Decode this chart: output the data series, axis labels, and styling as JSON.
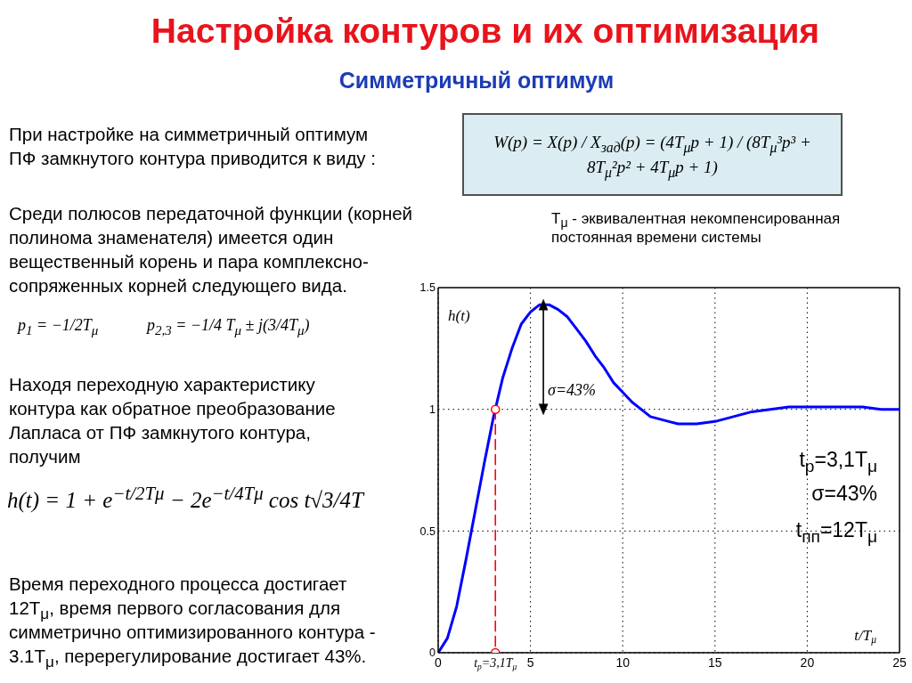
{
  "chart_data": {
    "type": "line",
    "title": "Настройка контуров и их оптимизация",
    "subtitle": "Симметричный оптимум",
    "xlabel": "t/T$_{μ}$",
    "ylabel": "h(t)",
    "xlim": [
      0,
      25
    ],
    "xticks": [
      0,
      {
        "value": 3.1,
        "label": "t$_{p}$=3,1T$_{μ}$"
      },
      5,
      10,
      15,
      20,
      25
    ],
    "ylim": [
      0,
      1.5
    ],
    "yticks": [
      0,
      0.5,
      1,
      1.5
    ],
    "grid": true,
    "series": [
      {
        "color": "#0000ff",
        "x": [
          0,
          0.5,
          1,
          1.5,
          2,
          2.5,
          3,
          3.5,
          4,
          4.5,
          5,
          5.5,
          6,
          6.5,
          7,
          7.5,
          8,
          8.5,
          9,
          9.5,
          10,
          10.5,
          11,
          11.5,
          12,
          12.5,
          13,
          13.5,
          14,
          15,
          16,
          17,
          18,
          19,
          20,
          21,
          22,
          23,
          24,
          25
        ],
        "values": [
          0,
          0.06,
          0.19,
          0.38,
          0.58,
          0.78,
          0.97,
          1.13,
          1.25,
          1.35,
          1.4,
          1.43,
          1.43,
          1.41,
          1.38,
          1.33,
          1.28,
          1.22,
          1.17,
          1.11,
          1.07,
          1.03,
          1.0,
          0.97,
          0.96,
          0.95,
          0.94,
          0.94,
          0.94,
          0.95,
          0.97,
          0.99,
          1.0,
          1.01,
          1.01,
          1.01,
          1.01,
          1.01,
          1.0,
          1.0
        ]
      },
      {
        "color": "#ff0000",
        "x": [
          3.1,
          3.1
        ],
        "values": [
          1,
          0
        ],
        "line_style": "dashed",
        "marker": "circle"
      },
      {
        "color": "#000000",
        "x": [
          5.7,
          5.7
        ],
        "values": [
          1,
          1.43
        ],
        "marker": "triangle"
      }
    ],
    "annotations": [
      "При настройке на симметричный оптимум ПФ замкнутого контура приводится к виду :",
      "W(p) = X(p) / X$_{зад}$(p) = (4T$_{μ}$p + 1) / (8T$_{μ}$³p³ + 8T$_{μ}$²p² + 4T$_{μ}$p + 1)",
      "T$_{μ}$ - эквивалентная некомпенсированная постоянная времени системы",
      "Среди полюсов передаточной функции (корней полинома знаменателя) имеется один вещественный корень и пара комплексно-сопряженных корней следующего вида.",
      "p$_{1}$ = −1/2T$_{μ}$",
      "p$_{2,3}$ = −1/4 T$_{μ}$ ± j(3/4T$_{μ}$)",
      "Находя переходную характеристику контура как обратное преобразование Лапласа от ПФ замкнутого контура, получим",
      "h(t) = 1 + e$^{−t/2Tμ}$ − 2e$^{−t/4Tμ}$ cos t√3/4T",
      "Время переходного процесса достигает 12T$_{μ}$, время первого согласования для симметрично оптимизированного контура - 3.1T$_{μ}$, перерегулирование достигает 43%.",
      {
        "text": "σ=43%",
        "x": 5.7,
        "y": 1.08
      },
      "t$_{p}$=3,1T$_{μ}$",
      "σ=43%",
      "t$_{пп}$=12T$_{μ}$"
    ]
  }
}
